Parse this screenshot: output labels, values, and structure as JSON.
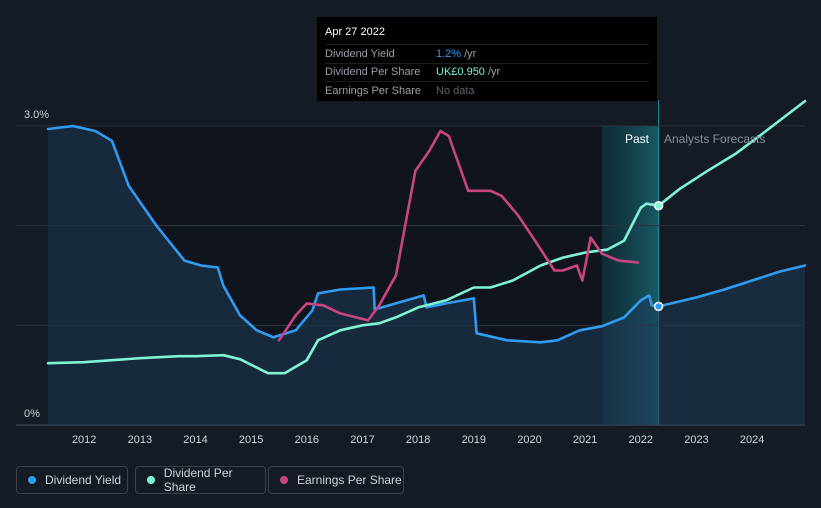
{
  "tooltip": {
    "date": "Apr 27 2022",
    "rows": [
      {
        "label": "Dividend Yield",
        "value": "1.2%",
        "unit": "/yr"
      },
      {
        "label": "Dividend Per Share",
        "value": "UK£0.950",
        "unit": "/yr"
      },
      {
        "label": "Earnings Per Share",
        "value": "No data",
        "unit": ""
      }
    ]
  },
  "legend": [
    {
      "label": "Dividend Yield",
      "color": "#2f9cf0"
    },
    {
      "label": "Dividend Per Share",
      "color": "#7ef3d6"
    },
    {
      "label": "Earnings Per Share",
      "color": "#c9457f"
    }
  ],
  "regions": {
    "past": "Past",
    "forecast": "Analysts Forecasts"
  },
  "chart_data": {
    "type": "line",
    "yticks": [
      "3.0%",
      "0%"
    ],
    "x_ticks": [
      "2012",
      "2013",
      "2014",
      "2015",
      "2016",
      "2017",
      "2018",
      "2019",
      "2020",
      "2021",
      "2022",
      "2023",
      "2024"
    ],
    "xlim": [
      2011.35,
      2024.95
    ],
    "ylim": [
      0,
      3.0
    ],
    "past_end": 2022.32,
    "shade_start": 2021.3,
    "highlight_x": 2022.32,
    "series": [
      {
        "name": "Dividend Yield",
        "color": "#2f9cf0",
        "filled": true,
        "points": [
          [
            2011.35,
            2.97
          ],
          [
            2011.8,
            3.0
          ],
          [
            2012.2,
            2.95
          ],
          [
            2012.5,
            2.85
          ],
          [
            2012.8,
            2.4
          ],
          [
            2013.3,
            2.0
          ],
          [
            2013.8,
            1.65
          ],
          [
            2014.1,
            1.6
          ],
          [
            2014.4,
            1.58
          ],
          [
            2014.5,
            1.4
          ],
          [
            2014.8,
            1.1
          ],
          [
            2015.1,
            0.95
          ],
          [
            2015.4,
            0.88
          ],
          [
            2015.8,
            0.95
          ],
          [
            2016.1,
            1.15
          ],
          [
            2016.2,
            1.32
          ],
          [
            2016.6,
            1.36
          ],
          [
            2017.2,
            1.38
          ],
          [
            2017.22,
            1.16
          ],
          [
            2017.6,
            1.22
          ],
          [
            2018.1,
            1.3
          ],
          [
            2018.15,
            1.18
          ],
          [
            2018.5,
            1.22
          ],
          [
            2019.0,
            1.27
          ],
          [
            2019.05,
            0.92
          ],
          [
            2019.6,
            0.85
          ],
          [
            2020.2,
            0.83
          ],
          [
            2020.5,
            0.85
          ],
          [
            2020.9,
            0.95
          ],
          [
            2021.3,
            0.99
          ],
          [
            2021.7,
            1.08
          ],
          [
            2022.0,
            1.25
          ],
          [
            2022.15,
            1.3
          ],
          [
            2022.2,
            1.2
          ],
          [
            2022.32,
            1.19
          ],
          [
            2023.0,
            1.28
          ],
          [
            2023.5,
            1.36
          ],
          [
            2024.0,
            1.45
          ],
          [
            2024.5,
            1.54
          ],
          [
            2024.95,
            1.6
          ]
        ]
      },
      {
        "name": "Dividend Per Share",
        "color": "#7ef3d6",
        "filled": false,
        "points": [
          [
            2011.35,
            0.62
          ],
          [
            2012.0,
            0.63
          ],
          [
            2012.5,
            0.65
          ],
          [
            2013.0,
            0.67
          ],
          [
            2013.7,
            0.69
          ],
          [
            2014.0,
            0.69
          ],
          [
            2014.5,
            0.7
          ],
          [
            2014.8,
            0.66
          ],
          [
            2015.3,
            0.52
          ],
          [
            2015.6,
            0.52
          ],
          [
            2016.0,
            0.65
          ],
          [
            2016.2,
            0.85
          ],
          [
            2016.6,
            0.95
          ],
          [
            2017.0,
            1.0
          ],
          [
            2017.3,
            1.02
          ],
          [
            2017.6,
            1.08
          ],
          [
            2018.0,
            1.18
          ],
          [
            2018.5,
            1.25
          ],
          [
            2019.0,
            1.38
          ],
          [
            2019.3,
            1.38
          ],
          [
            2019.7,
            1.45
          ],
          [
            2020.2,
            1.6
          ],
          [
            2020.6,
            1.68
          ],
          [
            2021.0,
            1.73
          ],
          [
            2021.4,
            1.76
          ],
          [
            2021.7,
            1.85
          ],
          [
            2022.0,
            2.18
          ],
          [
            2022.1,
            2.22
          ],
          [
            2022.32,
            2.2
          ],
          [
            2022.7,
            2.37
          ],
          [
            2023.2,
            2.55
          ],
          [
            2023.7,
            2.72
          ],
          [
            2024.2,
            2.93
          ],
          [
            2024.95,
            3.25
          ]
        ]
      },
      {
        "name": "Earnings Per Share",
        "color": "#c9457f",
        "filled": false,
        "points": [
          [
            2015.5,
            0.85
          ],
          [
            2015.8,
            1.1
          ],
          [
            2016.0,
            1.22
          ],
          [
            2016.3,
            1.2
          ],
          [
            2016.6,
            1.12
          ],
          [
            2017.1,
            1.05
          ],
          [
            2017.3,
            1.2
          ],
          [
            2017.6,
            1.5
          ],
          [
            2017.8,
            2.1
          ],
          [
            2017.95,
            2.55
          ],
          [
            2018.2,
            2.75
          ],
          [
            2018.4,
            2.95
          ],
          [
            2018.55,
            2.9
          ],
          [
            2018.9,
            2.35
          ],
          [
            2019.3,
            2.35
          ],
          [
            2019.5,
            2.3
          ],
          [
            2019.8,
            2.1
          ],
          [
            2020.1,
            1.85
          ],
          [
            2020.45,
            1.55
          ],
          [
            2020.6,
            1.55
          ],
          [
            2020.85,
            1.6
          ],
          [
            2020.95,
            1.45
          ],
          [
            2021.1,
            1.88
          ],
          [
            2021.3,
            1.72
          ],
          [
            2021.6,
            1.65
          ],
          [
            2021.95,
            1.63
          ]
        ]
      }
    ]
  }
}
